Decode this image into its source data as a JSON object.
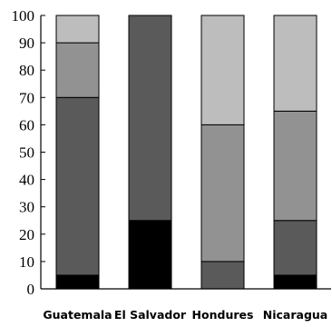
{
  "chart_data": {
    "type": "bar",
    "stacked": true,
    "categories": [
      "Guatemala",
      "El Salvador",
      "Hondures",
      "Nicaragua"
    ],
    "series": [
      {
        "values": [
          5,
          25,
          0,
          5
        ],
        "color": "#000000"
      },
      {
        "values": [
          65,
          75,
          10,
          20
        ],
        "color": "#5a5a5a"
      },
      {
        "values": [
          20,
          0,
          50,
          40
        ],
        "color": "#929292"
      },
      {
        "values": [
          10,
          0,
          40,
          35
        ],
        "color": "#bdbdbd"
      }
    ],
    "ylim": [
      0,
      100
    ],
    "yticks": [
      0,
      10,
      20,
      30,
      40,
      50,
      60,
      70,
      80,
      90,
      100
    ],
    "grid": false,
    "legend": "none",
    "title": "",
    "xlabel": "",
    "ylabel": ""
  }
}
